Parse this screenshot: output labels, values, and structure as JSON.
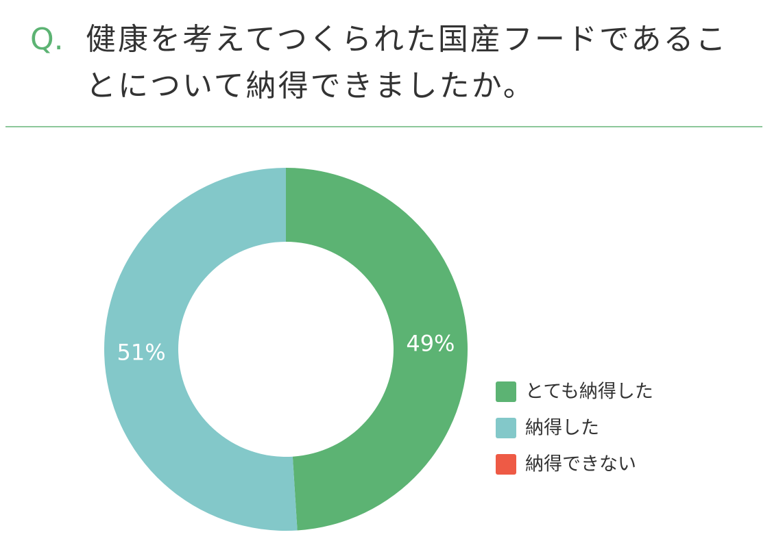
{
  "chart_data": {
    "type": "donut",
    "prefix": "Q.",
    "title": "健康を考えてつくられた国産フードであることについて納得できましたか。",
    "categories": [
      "とても納得した",
      "納得した",
      "納得できない"
    ],
    "values": [
      49,
      51,
      0
    ],
    "value_labels": [
      "49%",
      "51%",
      null
    ],
    "colors": [
      "#5cb373",
      "#83c8c9",
      "#ee5a45"
    ]
  }
}
